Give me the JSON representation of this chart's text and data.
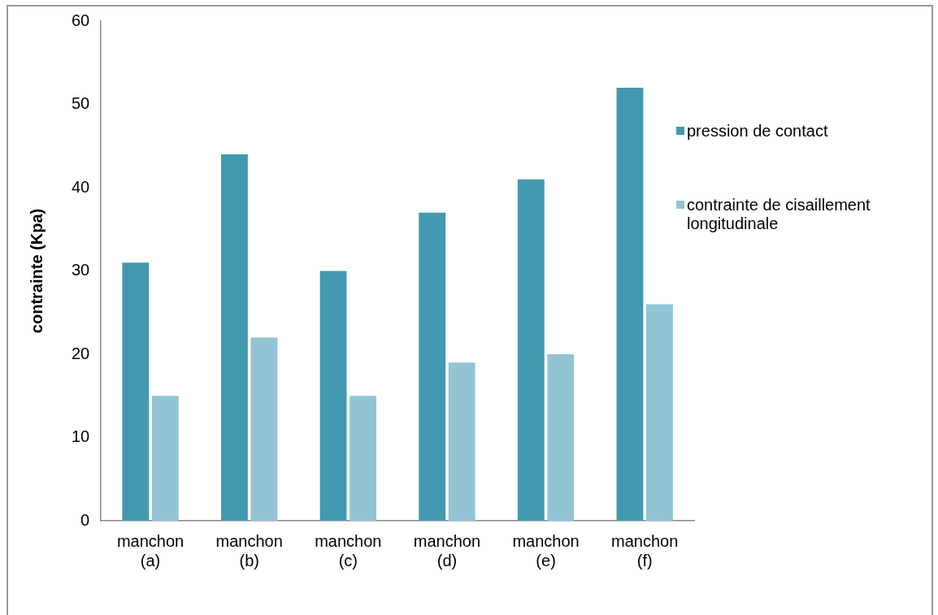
{
  "chart_data": {
    "type": "bar",
    "ylabel": "contrainte (Kpa)",
    "categories": [
      "manchon (a)",
      "manchon (b)",
      "manchon (c)",
      "manchon (d)",
      "manchon (e)",
      "manchon (f)"
    ],
    "series": [
      {
        "name": "pression de contact",
        "color": "#4299b0",
        "values": [
          31,
          44,
          30,
          37,
          41,
          52
        ]
      },
      {
        "name": "contrainte de cisaillement longitudinale",
        "color": "#93c4d4",
        "values": [
          15,
          22,
          15,
          19,
          20,
          26
        ]
      }
    ],
    "ylim": [
      0,
      60
    ],
    "yticks": [
      0,
      10,
      20,
      30,
      40,
      50,
      60
    ],
    "grid": false,
    "legend": "right"
  }
}
